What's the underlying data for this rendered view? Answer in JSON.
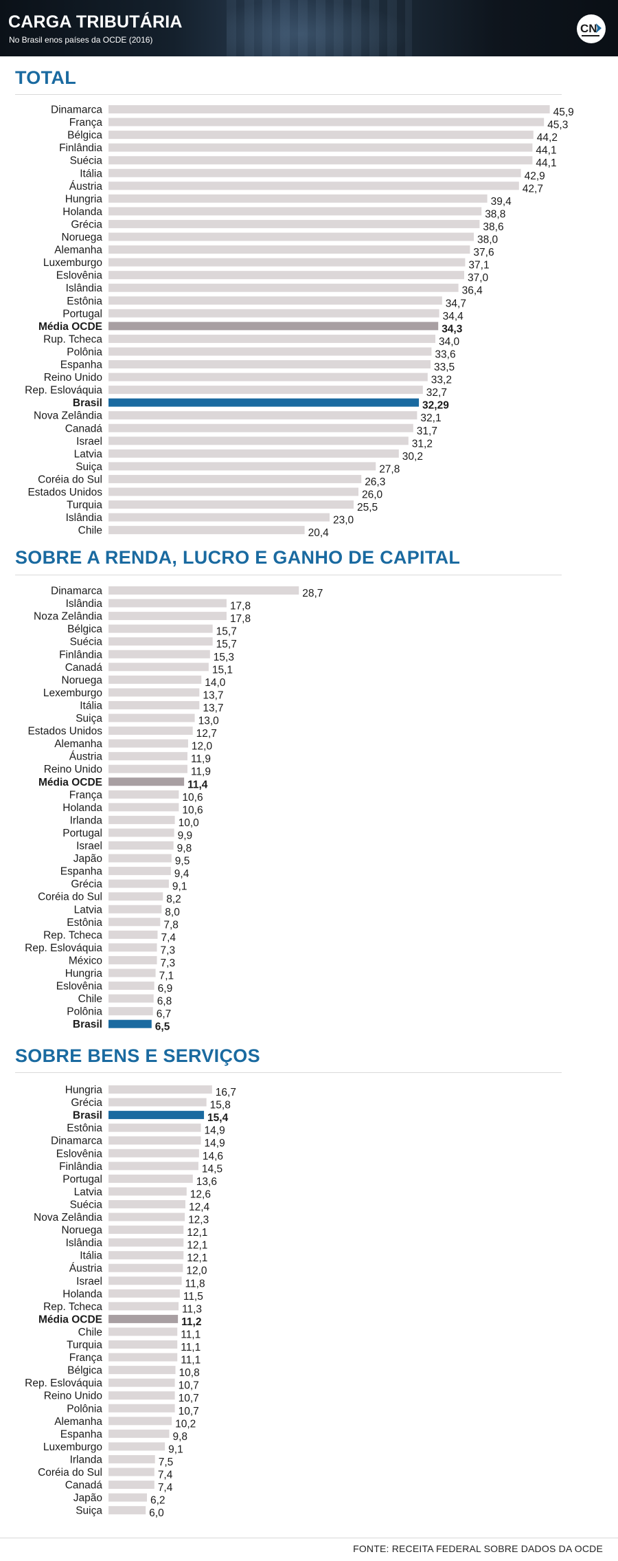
{
  "header": {
    "title": "CARGA TRIBUTÁRIA",
    "subtitle": "No Brasil enos países da OCDE (2016)",
    "logo_icon": "cnt-logo-icon"
  },
  "colors": {
    "default_bar": "#dcd7d8",
    "media_bar": "#a89fa2",
    "brasil_bar": "#1a6aa0",
    "section_title": "#1a6aa0"
  },
  "source": "FONTE: RECEITA FEDERAL SOBRE DADOS DA OCDE",
  "chart_data": [
    {
      "type": "bar",
      "orientation": "horizontal",
      "title": "TOTAL",
      "highlights": {
        "Média OCDE": "media",
        "Brasil": "brasil"
      },
      "categories": [
        "Dinamarca",
        "França",
        "Bélgica",
        "Finlândia",
        "Suécia",
        "Itália",
        "Áustria",
        "Hungria",
        "Holanda",
        "Grécia",
        "Noruega",
        "Alemanha",
        "Luxemburgo",
        "Eslovênia",
        "Islândia",
        "Estônia",
        "Portugal",
        "Média OCDE",
        "Rup. Tcheca",
        "Polônia",
        "Espanha",
        "Reino Unido",
        "Rep. Eslováquia",
        "Brasil",
        "Nova Zelândia",
        "Canadá",
        "Israel",
        "Latvia",
        "Suiça",
        "Coréia do Sul",
        "Estados Unidos",
        "Turquia",
        "Islândia",
        "Chile"
      ],
      "values": [
        45.9,
        45.3,
        44.2,
        44.1,
        44.1,
        42.9,
        42.7,
        39.4,
        38.8,
        38.6,
        38.0,
        37.6,
        37.1,
        37.0,
        36.4,
        34.7,
        34.4,
        34.3,
        34.0,
        33.6,
        33.5,
        33.2,
        32.7,
        32.29,
        32.1,
        31.7,
        31.2,
        30.2,
        27.8,
        26.3,
        26.0,
        25.5,
        23.0,
        20.4
      ],
      "labels": [
        "45,9",
        "45,3",
        "44,2",
        "44,1",
        "44,1",
        "42,9",
        "42,7",
        "39,4",
        "38,8",
        "38,6",
        "38,0",
        "37,6",
        "37,1",
        "37,0",
        "36,4",
        "34,7",
        "34,4",
        "34,3",
        "34,0",
        "33,6",
        "33,5",
        "33,2",
        "32,7",
        "32,29",
        "32,1",
        "31,7",
        "31,2",
        "30,2",
        "27,8",
        "26,3",
        "26,0",
        "25,5",
        "23,0",
        "20,4"
      ]
    },
    {
      "type": "bar",
      "orientation": "horizontal",
      "title": "SOBRE A RENDA, LUCRO E GANHO DE CAPITAL",
      "highlights": {
        "Média OCDE": "media",
        "Brasil": "brasil"
      },
      "categories": [
        "Dinamarca",
        "Islândia",
        "Noza Zelândia",
        "Bélgica",
        "Suécia",
        "Finlândia",
        "Canadá",
        "Noruega",
        "Lexemburgo",
        "Itália",
        "Suiça",
        "Estados Unidos",
        "Alemanha",
        "Áustria",
        "Reino Unido",
        "Média OCDE",
        "França",
        "Holanda",
        "Irlanda",
        "Portugal",
        "Israel",
        "Japão",
        "Espanha",
        "Grécia",
        "Coréia do Sul",
        "Latvia",
        "Estônia",
        "Rep. Tcheca",
        "Rep. Eslováquia",
        "México",
        "Hungria",
        "Eslovênia",
        "Chile",
        "Polônia",
        "Brasil"
      ],
      "values": [
        28.7,
        17.8,
        17.8,
        15.7,
        15.7,
        15.3,
        15.1,
        14.0,
        13.7,
        13.7,
        13.0,
        12.7,
        12.0,
        11.9,
        11.9,
        11.4,
        10.6,
        10.6,
        10.0,
        9.9,
        9.8,
        9.5,
        9.4,
        9.1,
        8.2,
        8.0,
        7.8,
        7.4,
        7.3,
        7.3,
        7.1,
        6.9,
        6.8,
        6.7,
        6.5
      ],
      "labels": [
        "28,7",
        "17,8",
        "17,8",
        "15,7",
        "15,7",
        "15,3",
        "15,1",
        "14,0",
        "13,7",
        "13,7",
        "13,0",
        "12,7",
        "12,0",
        "11,9",
        "11,9",
        "11,4",
        "10,6",
        "10,6",
        "10,0",
        "9,9",
        "9,8",
        "9,5",
        "9,4",
        "9,1",
        "8,2",
        "8,0",
        "7,8",
        "7,4",
        "7,3",
        "7,3",
        "7,1",
        "6,9",
        "6,8",
        "6,7",
        "6,5"
      ]
    },
    {
      "type": "bar",
      "orientation": "horizontal",
      "title": "SOBRE BENS E SERVIÇOS",
      "highlights": {
        "Média OCDE": "media",
        "Brasil": "brasil"
      },
      "categories": [
        "Hungria",
        "Grécia",
        "Brasil",
        "Estônia",
        "Dinamarca",
        "Eslovênia",
        "Finlândia",
        "Portugal",
        "Latvia",
        "Suécia",
        "Nova Zelândia",
        "Noruega",
        "Islândia",
        "Itália",
        "Áustria",
        "Israel",
        "Holanda",
        "Rep. Tcheca",
        "Média OCDE",
        "Chile",
        "Turquia",
        "França",
        "Bélgica",
        "Rep. Eslováquia",
        "Reino Unido",
        "Polônia",
        "Alemanha",
        "Espanha",
        "Luxemburgo",
        "Irlanda",
        "Coréia do Sul",
        "Canadá",
        "Japão",
        "Suiça"
      ],
      "values": [
        16.7,
        15.8,
        15.4,
        14.9,
        14.9,
        14.6,
        14.5,
        13.6,
        12.6,
        12.4,
        12.3,
        12.1,
        12.1,
        12.1,
        12.0,
        11.8,
        11.5,
        11.3,
        11.2,
        11.1,
        11.1,
        11.1,
        10.8,
        10.7,
        10.7,
        10.7,
        10.2,
        9.8,
        9.1,
        7.5,
        7.4,
        7.4,
        6.2,
        6.0
      ],
      "labels": [
        "16,7",
        "15,8",
        "15,4",
        "14,9",
        "14,9",
        "14,6",
        "14,5",
        "13,6",
        "12,6",
        "12,4",
        "12,3",
        "12,1",
        "12,1",
        "12,1",
        "12,0",
        "11,8",
        "11,5",
        "11,3",
        "11,2",
        "11,1",
        "11,1",
        "11,1",
        "10,8",
        "10,7",
        "10,7",
        "10,7",
        "10,2",
        "9,8",
        "9,1",
        "7,5",
        "7,4",
        "7,4",
        "6,2",
        "6,0"
      ]
    }
  ]
}
